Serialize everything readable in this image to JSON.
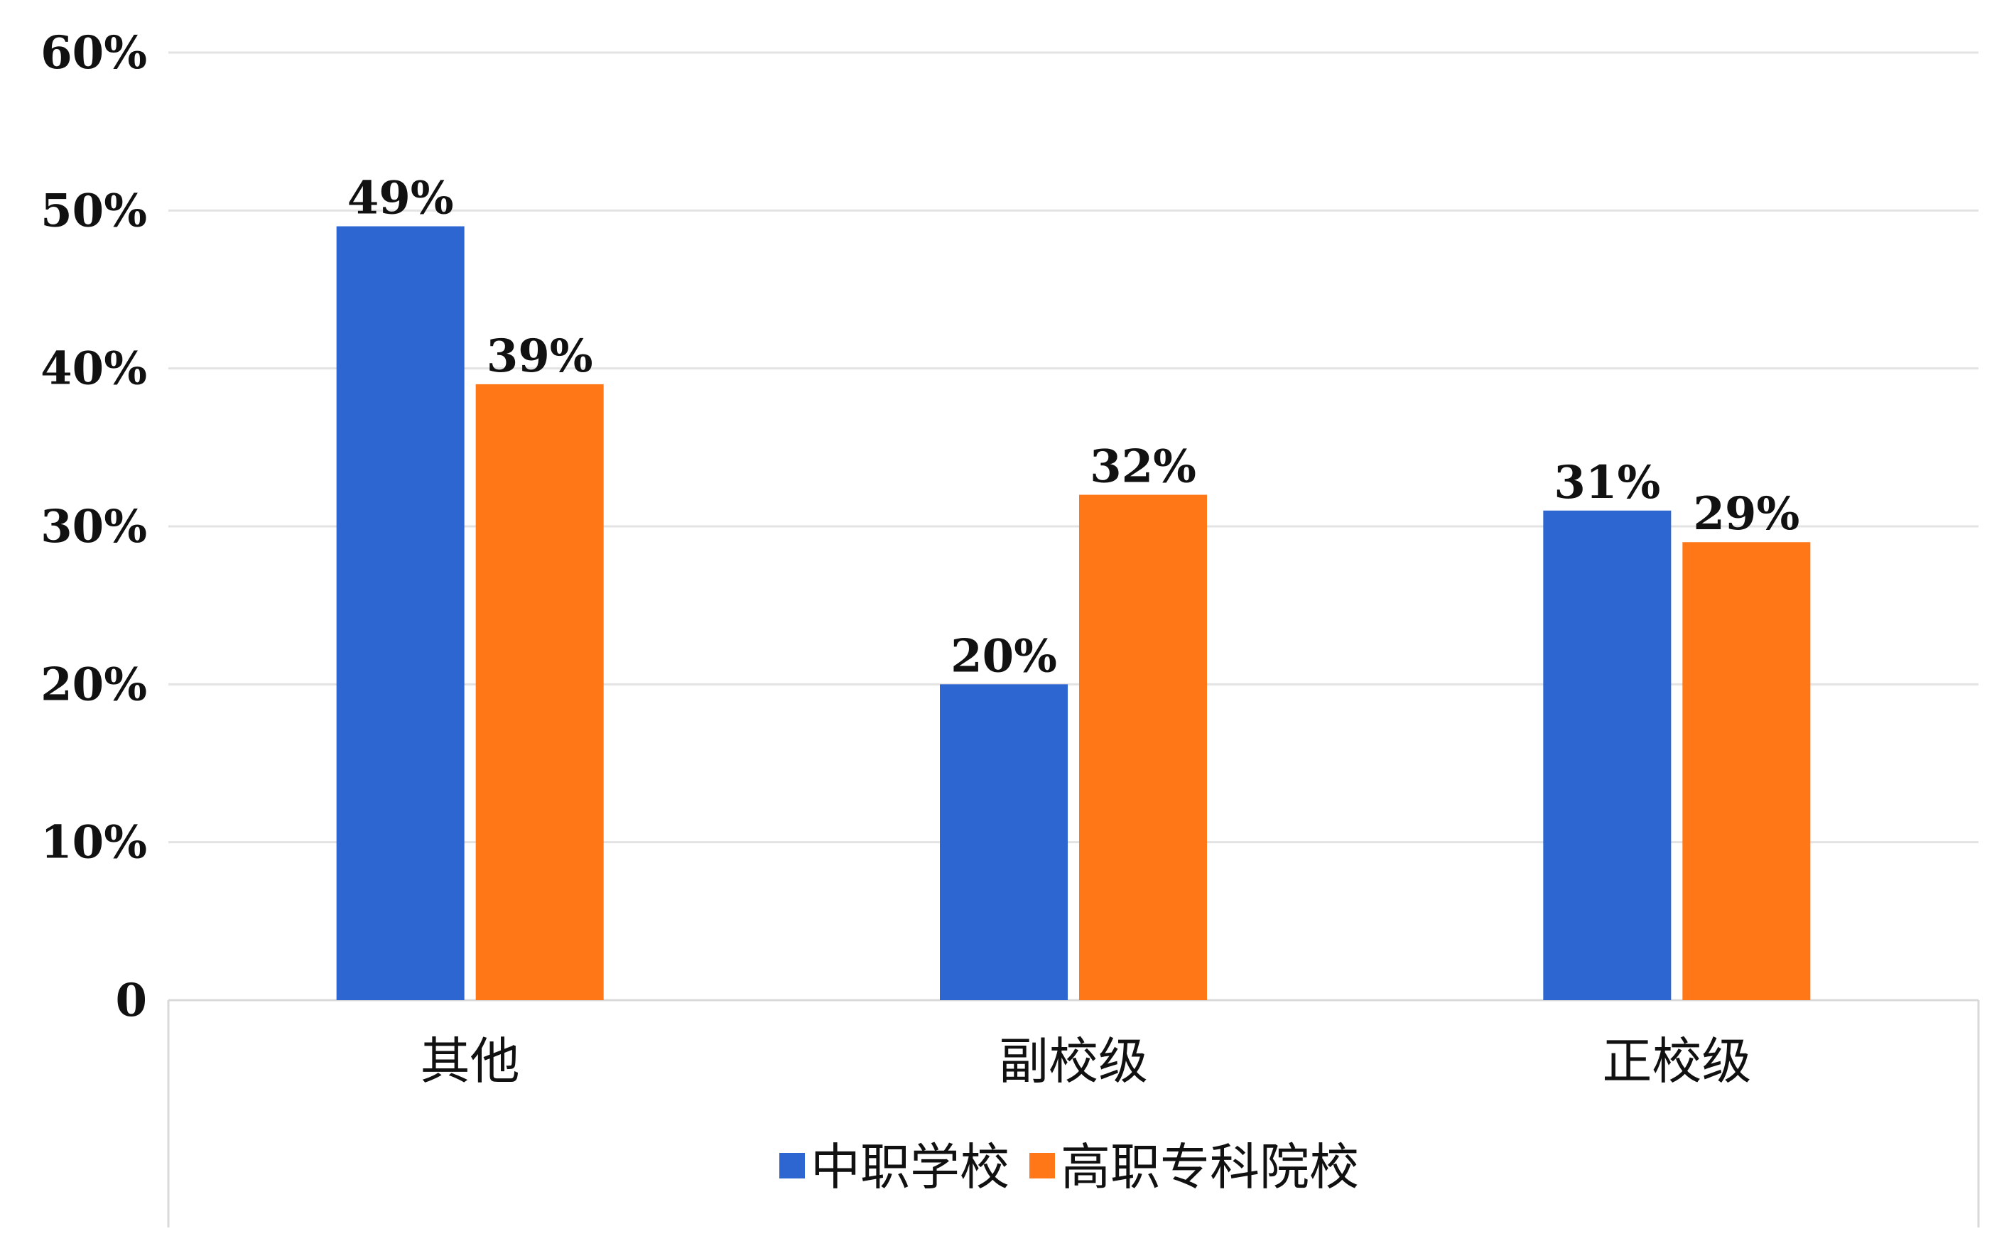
{
  "chart_data": {
    "type": "bar",
    "categories": [
      "其他",
      "副校级",
      "正校级"
    ],
    "series": [
      {
        "name": "中职学校",
        "values": [
          49,
          20,
          31
        ],
        "color": "#2D66D1"
      },
      {
        "name": "高职专科院校",
        "values": [
          39,
          32,
          29
        ],
        "color": "#FF7716"
      }
    ],
    "data_labels": [
      [
        "49%",
        "20%",
        "31%"
      ],
      [
        "39%",
        "32%",
        "29%"
      ]
    ],
    "y_ticks": [
      0,
      10,
      20,
      30,
      40,
      50,
      60
    ],
    "y_tick_labels": [
      "0",
      "10%",
      "20%",
      "30%",
      "40%",
      "50%",
      "60%"
    ],
    "ylim": [
      0,
      60
    ],
    "unit": "%",
    "grid": true,
    "legend_position": "bottom",
    "title": "",
    "xlabel": "",
    "ylabel": ""
  },
  "colors": {
    "gridline": "#E3E3E3",
    "axis": "#D9D9D9",
    "text": "#111111"
  }
}
